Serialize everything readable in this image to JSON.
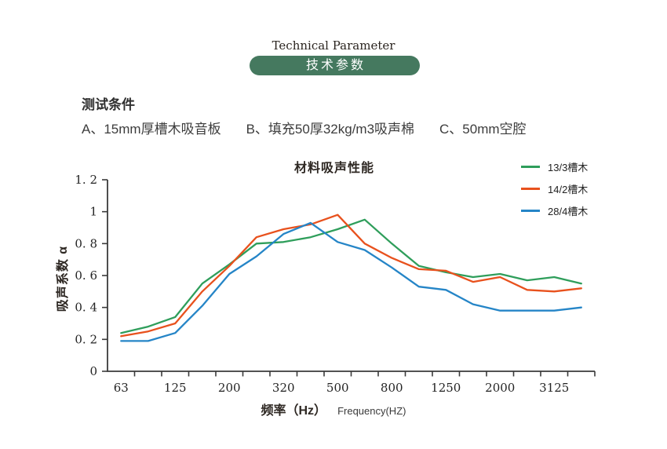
{
  "header": {
    "title_en": "Technical Parameter",
    "badge_cn": "技术参数",
    "badge_color": "#45795f"
  },
  "conditions": {
    "heading": "测试条件",
    "items": [
      {
        "label": "A、15mm厚槽木吸音板"
      },
      {
        "label": "B、填充50厚32kg/m3吸声棉"
      },
      {
        "label": "C、50mm空腔"
      }
    ]
  },
  "chart_data": {
    "type": "line",
    "title": "材料吸声性能",
    "xlabel": "频率（Hz）",
    "xlabel_sub": "Frequency(HZ)",
    "ylabel": "吸声系数 α",
    "ylim": [
      0,
      1.2
    ],
    "grid": false,
    "legend_position": "top-right",
    "axis_color": "#3a3a3a",
    "x_category_count": 18,
    "x_tick_labels": [
      "63",
      "125",
      "200",
      "320",
      "500",
      "800",
      "1250",
      "2000",
      "3125"
    ],
    "x_tick_label_positions": [
      0,
      2,
      4,
      6,
      8,
      10,
      12,
      14,
      16
    ],
    "yticks": [
      {
        "value": 0,
        "label": "0"
      },
      {
        "value": 0.2,
        "label": "0. 2"
      },
      {
        "value": 0.4,
        "label": "0. 4"
      },
      {
        "value": 0.6,
        "label": "0. 6"
      },
      {
        "value": 0.8,
        "label": "0. 8"
      },
      {
        "value": 1,
        "label": "1"
      },
      {
        "value": 1.2,
        "label": "1. 2"
      }
    ],
    "series": [
      {
        "name": "13/3槽木",
        "color": "#2f9e5b",
        "values": [
          0.24,
          0.28,
          0.34,
          0.55,
          0.67,
          0.8,
          0.81,
          0.84,
          0.89,
          0.95,
          0.8,
          0.66,
          0.62,
          0.59,
          0.61,
          0.57,
          0.59,
          0.55
        ]
      },
      {
        "name": "14/2槽木",
        "color": "#e8511d",
        "values": [
          0.22,
          0.25,
          0.3,
          0.5,
          0.66,
          0.84,
          0.89,
          0.92,
          0.98,
          0.8,
          0.71,
          0.64,
          0.63,
          0.56,
          0.59,
          0.51,
          0.5,
          0.52
        ]
      },
      {
        "name": "28/4槽木",
        "color": "#2585c7",
        "values": [
          0.19,
          0.19,
          0.24,
          0.41,
          0.61,
          0.72,
          0.86,
          0.93,
          0.81,
          0.76,
          0.65,
          0.53,
          0.51,
          0.42,
          0.38,
          0.38,
          0.38,
          0.4
        ]
      }
    ]
  }
}
